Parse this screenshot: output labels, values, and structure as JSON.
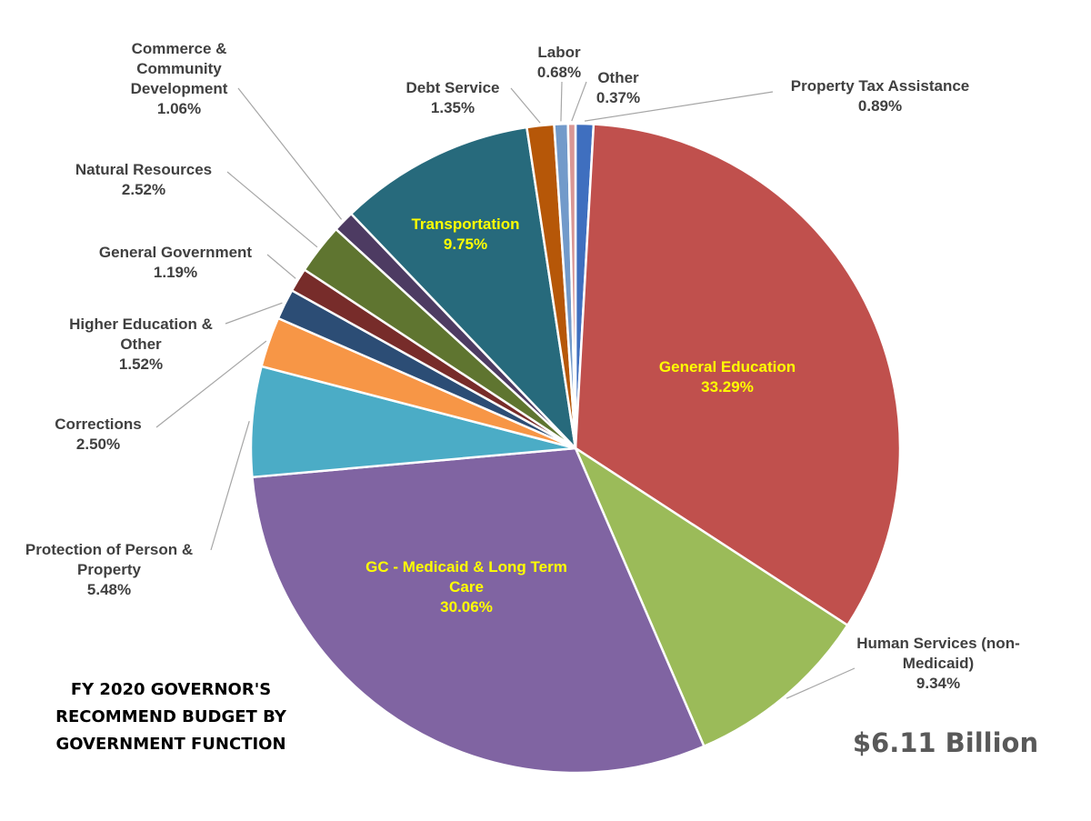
{
  "chart_data": {
    "type": "pie",
    "title": "FY 2020 GOVERNOR'S RECOMMEND BUDGET BY GOVERNMENT FUNCTION",
    "total_label": "$6.11 Billion",
    "categories": [
      "Property Tax Assistance",
      "General Education",
      "Human Services (non-Medicaid)",
      "GC - Medicaid & Long Term Care",
      "Protection of Person & Property",
      "Corrections",
      "Higher Education & Other",
      "General Government",
      "Natural Resources",
      "Commerce & Community Development",
      "Transportation",
      "Debt Service",
      "Labor",
      "Other"
    ],
    "values": [
      0.89,
      33.29,
      9.34,
      30.06,
      5.48,
      2.5,
      1.52,
      1.19,
      2.52,
      1.06,
      9.75,
      1.35,
      0.68,
      0.37
    ],
    "value_labels": [
      "0.89%",
      "33.29%",
      "9.34%",
      "30.06%",
      "5.48%",
      "2.50%",
      "1.52%",
      "1.19%",
      "2.52%",
      "1.06%",
      "9.75%",
      "1.35%",
      "0.68%",
      "0.37%"
    ],
    "colors": [
      "#3f6fbf",
      "#c0504d",
      "#9bbb59",
      "#8064a2",
      "#4bacc6",
      "#f79646",
      "#2c4d75",
      "#772c2a",
      "#5f7530",
      "#4d3b62",
      "#276a7c",
      "#b65708",
      "#729aca",
      "#d99694"
    ]
  }
}
